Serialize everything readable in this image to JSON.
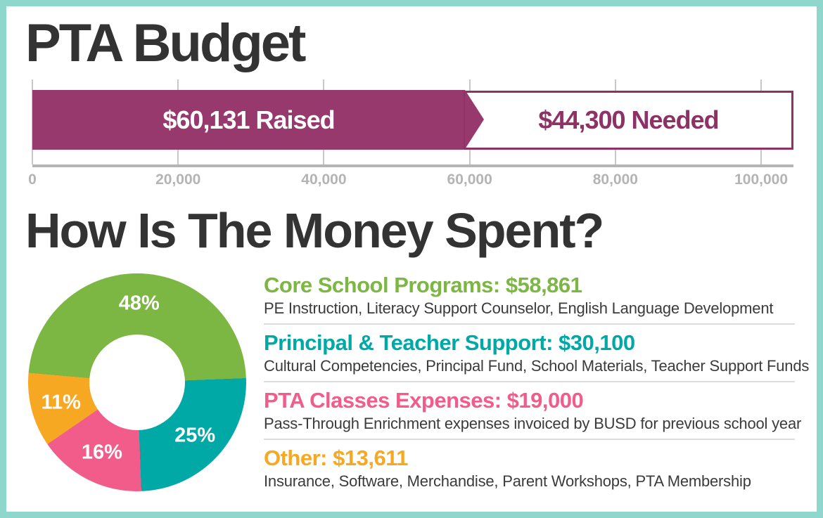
{
  "frame": {
    "border_color": "#8fd6cc",
    "background": "#ffffff"
  },
  "header": {
    "title": "PTA Budget"
  },
  "budget_bar": {
    "raised_label": "$60,131 Raised",
    "needed_label": "$44,300 Needed",
    "bar_color": "#97396c",
    "needed_border_color": "#8e3266",
    "axis_tick_labels": [
      "0",
      "20,000",
      "40,000",
      "60,000",
      "80,000",
      "100,000"
    ]
  },
  "spending": {
    "title": "How Is The Money Spent?",
    "donut_labels": [
      "48%",
      "25%",
      "16%",
      "11%"
    ],
    "legend": [
      {
        "heading": "Core School Programs: $58,861",
        "description": "PE Instruction, Literacy Support Counselor, English Language Development",
        "color": "#7cb643"
      },
      {
        "heading": "Principal & Teacher Support: $30,100",
        "description": "Cultural Competencies, Principal Fund, School Materials, Teacher Support Funds",
        "color": "#00a9a6"
      },
      {
        "heading": "PTA Classes Expenses: $19,000",
        "description": "Pass-Through Enrichment expenses invoiced by BUSD for previous school year",
        "color": "#f25c8a"
      },
      {
        "heading": "Other: $13,611",
        "description": "Insurance, Software, Merchandise, Parent Workshops, PTA Membership",
        "color": "#f7a823"
      }
    ]
  },
  "chart_data": [
    {
      "type": "bar",
      "title": "PTA Budget",
      "orientation": "horizontal",
      "series": [
        {
          "name": "Raised",
          "value": 60131,
          "label": "$60,131 Raised",
          "color": "#97396c"
        },
        {
          "name": "Needed",
          "value": 44300,
          "label": "$44,300 Needed",
          "color": "#ffffff"
        }
      ],
      "x_ticks": [
        0,
        20000,
        40000,
        60000,
        80000,
        100000
      ],
      "xlim": [
        0,
        104431
      ],
      "tick_format": "thousands-comma"
    },
    {
      "type": "pie",
      "title": "How Is The Money Spent?",
      "categories": [
        "Core School Programs",
        "Principal & Teacher Support",
        "PTA Classes Expenses",
        "Other"
      ],
      "values": [
        58861,
        30100,
        19000,
        13611
      ],
      "percents": [
        48,
        25,
        16,
        11
      ],
      "percent_labels": [
        "48%",
        "25%",
        "16%",
        "11%"
      ],
      "colors": [
        "#7cb643",
        "#00a9a6",
        "#f25c8a",
        "#f7a823"
      ],
      "start_angle_deg": 275,
      "donut_hole_ratio": 0.44,
      "legend_position": "right",
      "label_color": "#ffffff"
    }
  ]
}
